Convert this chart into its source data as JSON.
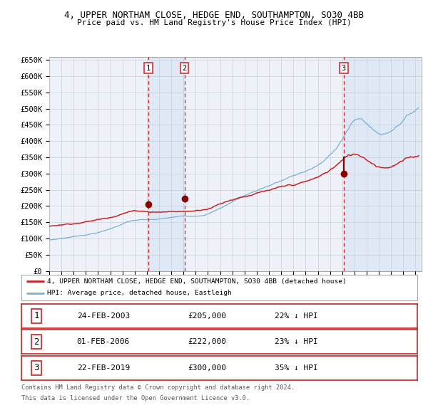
{
  "title_line1": "4, UPPER NORTHAM CLOSE, HEDGE END, SOUTHAMPTON, SO30 4BB",
  "title_line2": "Price paid vs. HM Land Registry's House Price Index (HPI)",
  "ylim": [
    0,
    660000
  ],
  "yticks": [
    0,
    50000,
    100000,
    150000,
    200000,
    250000,
    300000,
    350000,
    400000,
    450000,
    500000,
    550000,
    600000,
    650000
  ],
  "ytick_labels": [
    "£0",
    "£50K",
    "£100K",
    "£150K",
    "£200K",
    "£250K",
    "£300K",
    "£350K",
    "£400K",
    "£450K",
    "£500K",
    "£550K",
    "£600K",
    "£650K"
  ],
  "sale1_price": 205000,
  "sale2_price": 222000,
  "sale3_price": 300000,
  "sale1_year": 2003.12,
  "sale2_year": 2006.08,
  "sale3_year": 2019.12,
  "hpi_color": "#7bafd4",
  "price_color": "#cc2222",
  "sale_dot_color": "#880000",
  "shade_color": "#dde8f5",
  "background_color": "#ffffff",
  "plot_bg_color": "#eef2f8",
  "grid_color": "#c8cdd8",
  "legend_line1": "4, UPPER NORTHAM CLOSE, HEDGE END, SOUTHAMPTON, SO30 4BB (detached house)",
  "legend_line2": "HPI: Average price, detached house, Eastleigh",
  "table_row1": [
    "1",
    "24-FEB-2003",
    "£205,000",
    "22% ↓ HPI"
  ],
  "table_row2": [
    "2",
    "01-FEB-2006",
    "£222,000",
    "23% ↓ HPI"
  ],
  "table_row3": [
    "3",
    "22-FEB-2019",
    "£300,000",
    "35% ↓ HPI"
  ],
  "footnote1": "Contains HM Land Registry data © Crown copyright and database right 2024.",
  "footnote2": "This data is licensed under the Open Government Licence v3.0."
}
